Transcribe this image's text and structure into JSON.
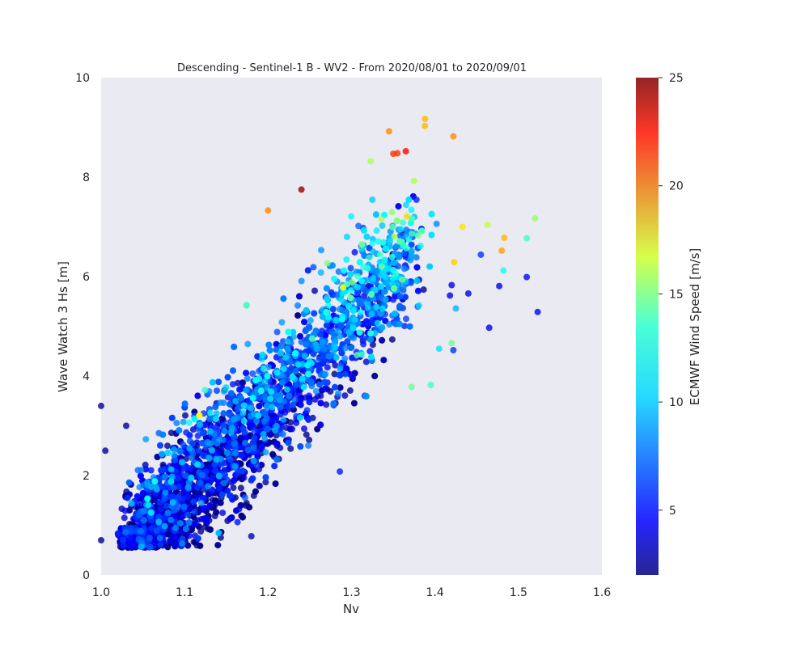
{
  "chart_data": {
    "type": "scatter",
    "title": "Descending - Sentinel-1 B - WV2 - From 2020/08/01 to 2020/09/01",
    "xlabel": "Nv",
    "ylabel": "Wave Watch 3 Hs [m]",
    "xlim": [
      1.0,
      1.6
    ],
    "ylim": [
      0,
      10
    ],
    "xticks": [
      "1.0",
      "1.1",
      "1.2",
      "1.3",
      "1.4",
      "1.5",
      "1.6"
    ],
    "yticks": [
      "0",
      "2",
      "4",
      "6",
      "8",
      "10"
    ],
    "grid": false,
    "background": "#eaeaf2",
    "colorbar": {
      "label": "ECMWF Wind Speed [m/s]",
      "range": [
        2,
        25
      ],
      "ticks": [
        "5",
        "10",
        "15",
        "20",
        "25"
      ],
      "colormap": "jet"
    },
    "outlier_points": [
      {
        "x": 1.0,
        "y": 3.4,
        "c": 2.5
      },
      {
        "x": 1.0,
        "y": 0.7,
        "c": 2.5
      },
      {
        "x": 1.005,
        "y": 2.5,
        "c": 2.5
      },
      {
        "x": 1.03,
        "y": 3.0,
        "c": 2.5
      },
      {
        "x": 1.24,
        "y": 7.75,
        "c": 24.5
      },
      {
        "x": 1.2,
        "y": 7.33,
        "c": 19.0
      },
      {
        "x": 1.345,
        "y": 8.92,
        "c": 19.0
      },
      {
        "x": 1.388,
        "y": 9.17,
        "c": 18.0
      },
      {
        "x": 1.388,
        "y": 9.03,
        "c": 18.0
      },
      {
        "x": 1.422,
        "y": 8.82,
        "c": 19.0
      },
      {
        "x": 1.365,
        "y": 8.52,
        "c": 22.0
      },
      {
        "x": 1.355,
        "y": 8.48,
        "c": 21.0
      },
      {
        "x": 1.35,
        "y": 8.47,
        "c": 21.0
      },
      {
        "x": 1.323,
        "y": 8.32,
        "c": 14.5
      },
      {
        "x": 1.402,
        "y": 7.06,
        "c": 8.0
      },
      {
        "x": 1.433,
        "y": 7.0,
        "c": 17.0
      },
      {
        "x": 1.463,
        "y": 7.04,
        "c": 15.0
      },
      {
        "x": 1.52,
        "y": 7.17,
        "c": 14.0
      },
      {
        "x": 1.51,
        "y": 6.77,
        "c": 12.0
      },
      {
        "x": 1.483,
        "y": 6.78,
        "c": 18.0
      },
      {
        "x": 1.48,
        "y": 6.52,
        "c": 18.5
      },
      {
        "x": 1.455,
        "y": 6.44,
        "c": 6.0
      },
      {
        "x": 1.423,
        "y": 6.29,
        "c": 17.5
      },
      {
        "x": 1.482,
        "y": 6.12,
        "c": 11.0
      },
      {
        "x": 1.51,
        "y": 5.99,
        "c": 5.0
      },
      {
        "x": 1.477,
        "y": 5.81,
        "c": 4.5
      },
      {
        "x": 1.42,
        "y": 5.83,
        "c": 4.5
      },
      {
        "x": 1.44,
        "y": 5.66,
        "c": 4.5
      },
      {
        "x": 1.418,
        "y": 5.62,
        "c": 4.5
      },
      {
        "x": 1.425,
        "y": 5.36,
        "c": 9.0
      },
      {
        "x": 1.523,
        "y": 5.29,
        "c": 5.0
      },
      {
        "x": 1.465,
        "y": 4.97,
        "c": 4.5
      },
      {
        "x": 1.42,
        "y": 4.66,
        "c": 13.0
      },
      {
        "x": 1.422,
        "y": 4.52,
        "c": 6.0
      },
      {
        "x": 1.405,
        "y": 4.55,
        "c": 10.0
      },
      {
        "x": 1.372,
        "y": 3.78,
        "c": 13.0
      },
      {
        "x": 1.395,
        "y": 3.82,
        "c": 12.0
      },
      {
        "x": 1.286,
        "y": 2.08,
        "c": 5.5
      },
      {
        "x": 1.18,
        "y": 0.78,
        "c": 3.5
      }
    ]
  }
}
